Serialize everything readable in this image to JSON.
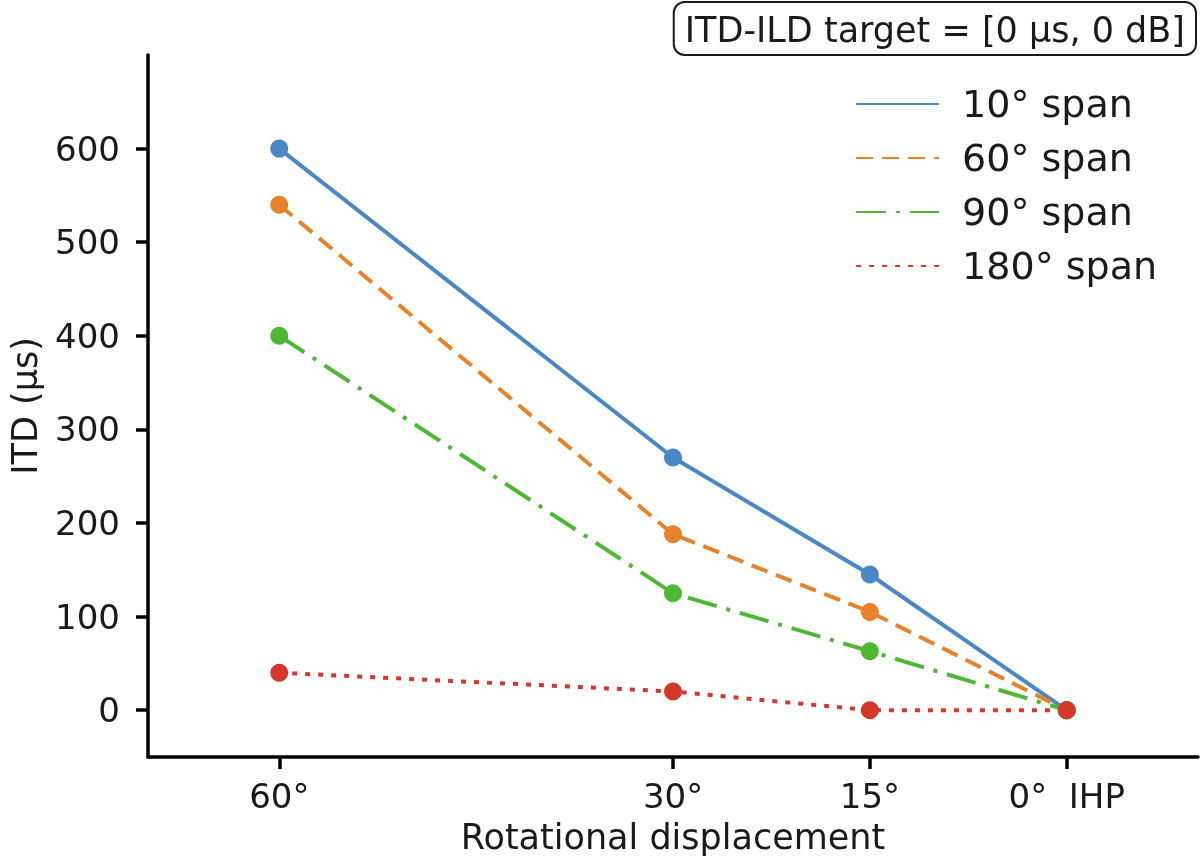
{
  "chart_data": {
    "type": "line",
    "xlabel": "Rotational displacement",
    "ylabel": "ITD (μs)",
    "annotations": [
      "ITD-ILD target = [0 μs, 0 dB]"
    ],
    "x": [
      60,
      30,
      15,
      0
    ],
    "xlim": [
      70,
      -10
    ],
    "xticks": [
      {
        "value": 60,
        "label": "60°"
      },
      {
        "value": 30,
        "label": "30°"
      },
      {
        "value": 15,
        "label": "15°"
      },
      {
        "value": 0,
        "label": "0°  IHP"
      }
    ],
    "ylim": [
      -50,
      700
    ],
    "yticks": [
      0,
      100,
      200,
      300,
      400,
      500,
      600
    ],
    "grid": false,
    "legend": "top right",
    "marker": "circle",
    "series": [
      {
        "name": "10° span",
        "color": "#4a87c4",
        "line_style": "solid",
        "values": [
          600,
          270,
          145,
          0
        ]
      },
      {
        "name": "60° span",
        "color": "#e8822a",
        "line_style": "dashed",
        "values": [
          540,
          188,
          105,
          0
        ]
      },
      {
        "name": "90° span",
        "color": "#4db834",
        "line_style": "dashdot",
        "values": [
          400,
          125,
          63,
          0
        ]
      },
      {
        "name": "180° span",
        "color": "#d6372b",
        "line_style": "dotted",
        "values": [
          40,
          20,
          0,
          0
        ]
      }
    ]
  }
}
